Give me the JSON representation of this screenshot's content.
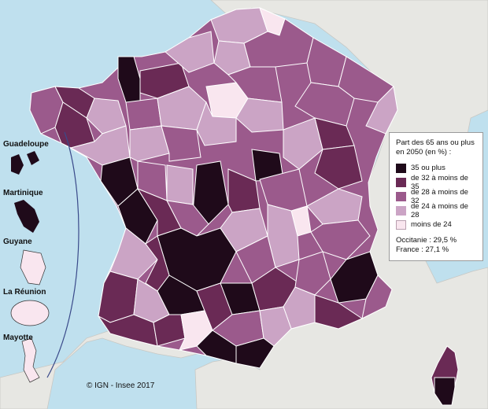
{
  "map": {
    "legend": {
      "title": "Part des 65 ans ou plus\nen 2050 (en %) :",
      "classes": [
        {
          "label": "35 ou plus",
          "color": "#1f0a1a"
        },
        {
          "label": "de 32 à moins de 35",
          "color": "#6a2a55"
        },
        {
          "label": "de 28 à moins de 32",
          "color": "#9b5a8c"
        },
        {
          "label": "de 24 à moins de 28",
          "color": "#cba4c5"
        },
        {
          "label": "moins de 24",
          "color": "#f9e6ef"
        }
      ],
      "stats": [
        "Occitanie : 29,5 %",
        "France : 27,1 %"
      ]
    },
    "overseas": [
      "Guadeloupe",
      "Martinique",
      "Guyane",
      "La Réunion",
      "Mayotte"
    ],
    "credit": "© IGN - Insee 2017",
    "colors": {
      "sea": "#bfe0ee",
      "neighbours": "#e7e7e3",
      "borders": "#ffffff",
      "curve": "#3a4a8a"
    }
  }
}
